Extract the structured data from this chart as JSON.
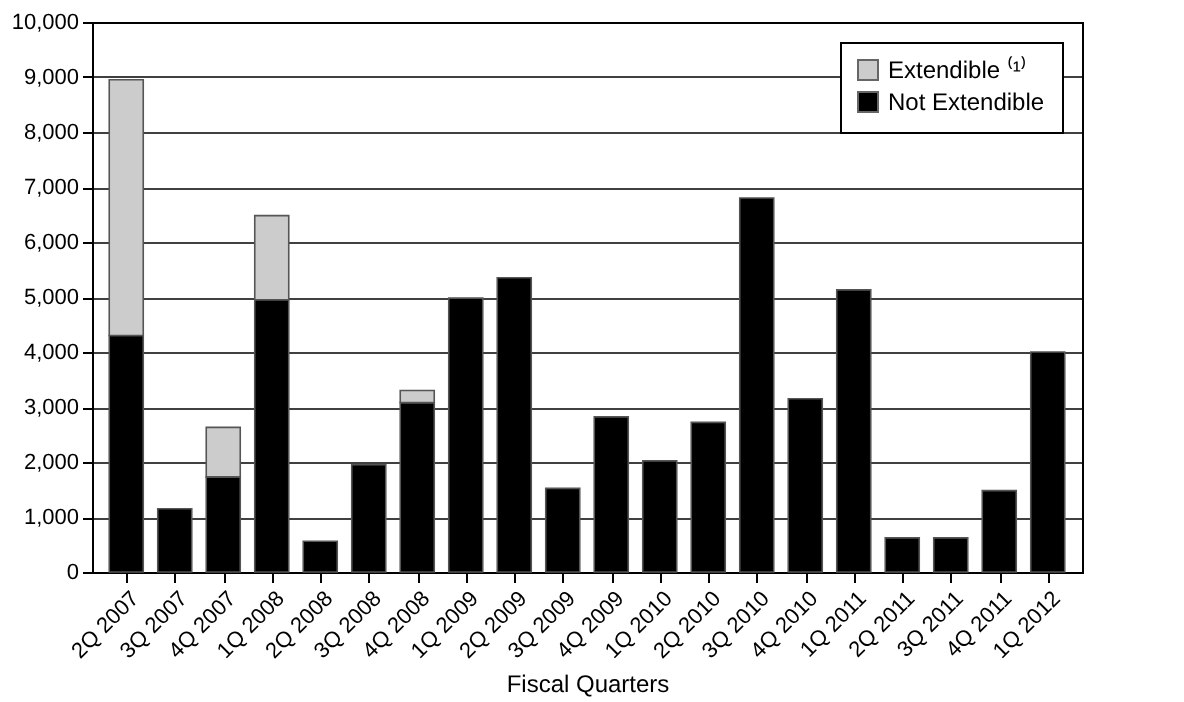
{
  "chart_data": {
    "type": "bar",
    "stacked": true,
    "xlabel": "Fiscal Quarters",
    "categories": [
      "2Q 2007",
      "3Q 2007",
      "4Q 2007",
      "1Q 2008",
      "2Q 2008",
      "3Q 2008",
      "4Q 2008",
      "1Q 2009",
      "2Q 2009",
      "3Q 2009",
      "4Q 2009",
      "1Q 2010",
      "2Q 2010",
      "3Q 2010",
      "4Q 2010",
      "1Q 2011",
      "2Q 2011",
      "3Q 2011",
      "4Q 2011",
      "1Q 2012"
    ],
    "series": [
      {
        "name": "Not Extendible",
        "color": "#000000",
        "values": [
          4300,
          1150,
          1730,
          4950,
          560,
          1950,
          3080,
          4980,
          5350,
          1520,
          2820,
          2020,
          2720,
          6800,
          3150,
          5130,
          620,
          620,
          1480,
          4000
        ]
      },
      {
        "name": "Extendible ⁽¹⁾",
        "color": "#cccccc",
        "values": [
          4650,
          null,
          900,
          1530,
          null,
          null,
          220,
          null,
          null,
          null,
          null,
          null,
          null,
          null,
          null,
          null,
          null,
          null,
          null,
          null
        ]
      }
    ],
    "ylim": [
      0,
      10000
    ],
    "yticks": [
      0,
      {
        "value": 1000,
        "label": "1,000"
      },
      {
        "value": 2000,
        "label": "2,000"
      },
      {
        "value": 3000,
        "label": "3,000"
      },
      {
        "value": 4000,
        "label": "4,000"
      },
      {
        "value": 5000,
        "label": "5,000"
      },
      {
        "value": 6000,
        "label": "6,000"
      },
      {
        "value": 7000,
        "label": "7,000"
      },
      {
        "value": 8000,
        "label": "8,000"
      },
      {
        "value": 9000,
        "label": "9,000"
      },
      {
        "value": 10000,
        "label": "10,000"
      }
    ],
    "grid": "y",
    "legend": "top right"
  }
}
